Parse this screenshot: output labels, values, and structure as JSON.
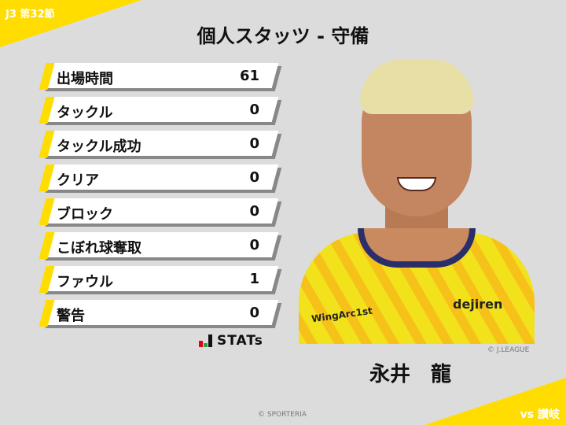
{
  "header": {
    "round": "J3 第32節",
    "title": "個人スタッツ - 守備",
    "opponent": "vs 讃岐"
  },
  "stats": [
    {
      "label": "出場時間",
      "value": "61"
    },
    {
      "label": "タックル",
      "value": "0"
    },
    {
      "label": "タックル成功",
      "value": "0"
    },
    {
      "label": "クリア",
      "value": "0"
    },
    {
      "label": "ブロック",
      "value": "0"
    },
    {
      "label": "こぼれ球奪取",
      "value": "0"
    },
    {
      "label": "ファウル",
      "value": "1"
    },
    {
      "label": "警告",
      "value": "0"
    }
  ],
  "logo": {
    "text": "STATs",
    "colors": [
      "#e60012",
      "#2e9e3a",
      "#111111"
    ]
  },
  "player": {
    "name": "永井　龍",
    "photo_credit": "© J.LEAGUE",
    "sponsors": [
      "WingArc1st",
      "dejiren"
    ]
  },
  "footer": {
    "copyright": "© SPORTERIA"
  },
  "colors": {
    "accent": "#ffdd00",
    "background": "#dcdcdc"
  }
}
